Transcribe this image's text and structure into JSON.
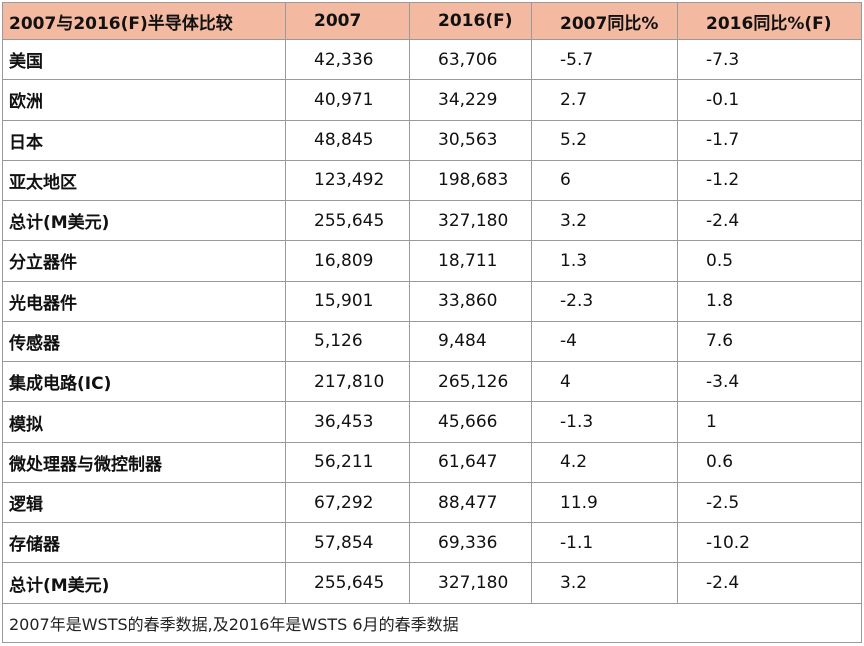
{
  "table": {
    "headers": [
      "2007与2016(F)半导体比较",
      "2007",
      "2016(F)",
      "2007同比%",
      "2016同比%(F)"
    ],
    "rows": [
      [
        "美国",
        "42,336",
        "63,706",
        "-5.7",
        "-7.3"
      ],
      [
        "欧洲",
        "40,971",
        "34,229",
        "2.7",
        "-0.1"
      ],
      [
        "日本",
        "48,845",
        "30,563",
        "5.2",
        "-1.7"
      ],
      [
        "亚太地区",
        "123,492",
        "198,683",
        "6",
        "-1.2"
      ],
      [
        "总计(M美元)",
        "255,645",
        "327,180",
        "3.2",
        "-2.4"
      ],
      [
        "分立器件",
        "16,809",
        "18,711",
        "1.3",
        "0.5"
      ],
      [
        "光电器件",
        "15,901",
        "33,860",
        "-2.3",
        "1.8"
      ],
      [
        "传感器",
        "5,126",
        "9,484",
        "-4",
        "7.6"
      ],
      [
        "集成电路(IC)",
        "217,810",
        "265,126",
        "4",
        "-3.4"
      ],
      [
        "模拟",
        "36,453",
        "45,666",
        "-1.3",
        "1"
      ],
      [
        "微处理器与微控制器",
        "56,211",
        "61,647",
        "4.2",
        "0.6"
      ],
      [
        "逻辑",
        "67,292",
        "88,477",
        "11.9",
        "-2.5"
      ],
      [
        "存储器",
        "57,854",
        "69,336",
        "-1.1",
        "-10.2"
      ],
      [
        "总计(M美元)",
        "255,645",
        "327,180",
        "3.2",
        "-2.4"
      ]
    ],
    "footnote": "2007年是WSTS的春季数据,及2016年是WSTS 6月的春季数据"
  },
  "colors": {
    "header_bg": "#f3b9a1",
    "grid": "#9a9a9a"
  }
}
